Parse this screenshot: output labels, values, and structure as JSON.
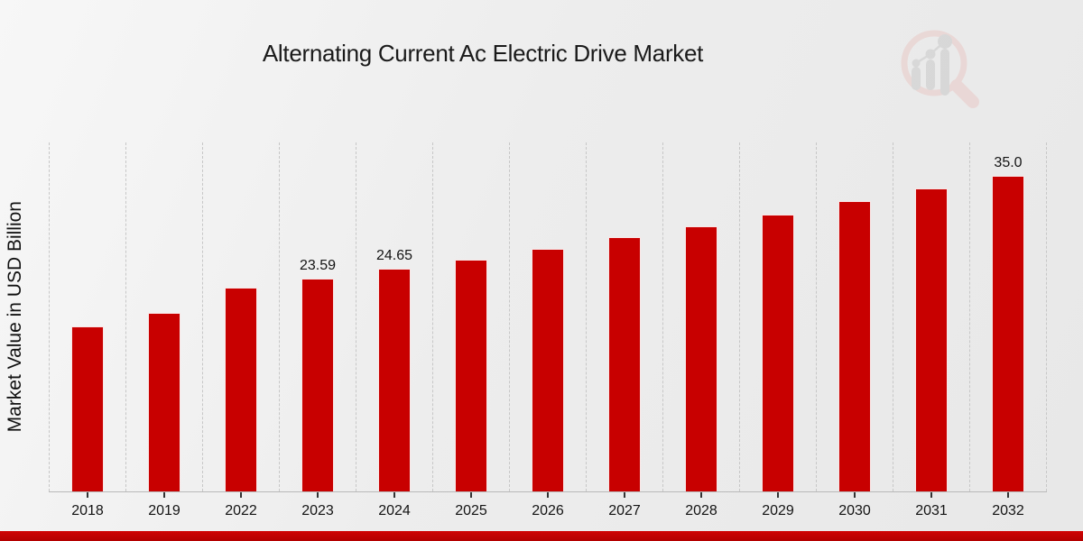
{
  "header": {
    "title": "Alternating Current Ac Electric Drive Market"
  },
  "y_axis": {
    "label": "Market Value in USD Billion"
  },
  "logo": {
    "name": "magnifier-bar-chart-watermark-logo",
    "lens_color": "#e9d6d4",
    "bars_color": "#d6d6d6"
  },
  "colors": {
    "bar": "#c80000",
    "banner": "#c00000",
    "gridline": "#c7c7c7",
    "background": "#ededed",
    "text": "#141414"
  },
  "chart_data": {
    "type": "bar",
    "title": "Alternating Current Ac Electric Drive Market",
    "xlabel": "",
    "ylabel": "Market Value in USD Billion",
    "categories": [
      "2018",
      "2019",
      "2022",
      "2023",
      "2024",
      "2025",
      "2026",
      "2027",
      "2028",
      "2029",
      "2030",
      "2031",
      "2032"
    ],
    "values": [
      18.3,
      19.8,
      22.6,
      23.59,
      24.65,
      25.7,
      26.9,
      28.2,
      29.4,
      30.7,
      32.2,
      33.6,
      35.0
    ],
    "data_labels": [
      "",
      "",
      "",
      "23.59",
      "24.65",
      "",
      "",
      "",
      "",
      "",
      "",
      "",
      "35.0"
    ],
    "ylim": [
      0,
      38.7
    ],
    "bar_color": "#c80000",
    "grid": "vertical-dashed",
    "legend": "none"
  }
}
